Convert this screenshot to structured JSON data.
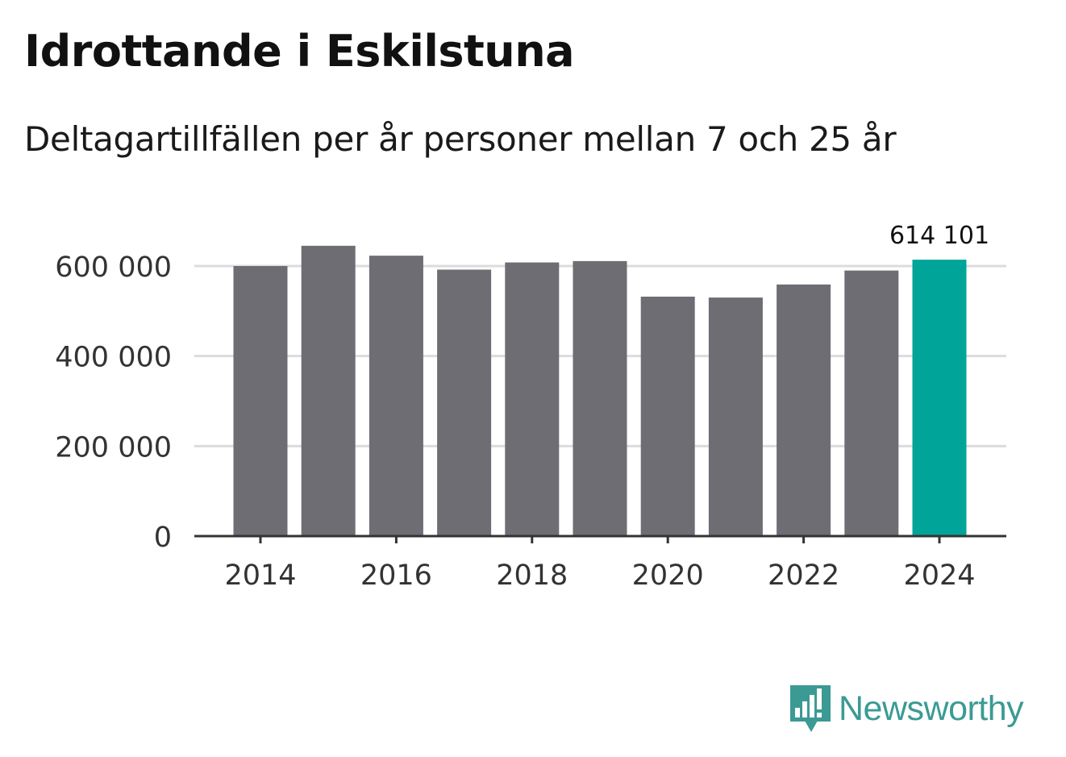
{
  "title": "Idrottande i Eskilstuna",
  "subtitle": "Deltagartillfällen per år personer mellan 7 och 25 år",
  "brand": {
    "name": "Newsworthy",
    "icon": "newsworthy-logo-icon",
    "color": "#3b9a94"
  },
  "colors": {
    "bar": "#6e6d73",
    "highlight": "#00a499",
    "grid": "#dcdcdc",
    "axis": "#333333",
    "text": "#333333"
  },
  "chart_data": {
    "type": "bar",
    "title": "Idrottande i Eskilstuna",
    "subtitle": "Deltagartillfällen per år personer mellan 7 och 25 år",
    "xlabel": "",
    "ylabel": "",
    "categories": [
      "2014",
      "2015",
      "2016",
      "2017",
      "2018",
      "2019",
      "2020",
      "2021",
      "2022",
      "2023",
      "2024"
    ],
    "values": [
      600000,
      645000,
      623000,
      592000,
      608000,
      611000,
      532000,
      530000,
      559000,
      590000,
      614101
    ],
    "highlight_index": 10,
    "highlight_label": "614 101",
    "ylim": [
      0,
      600000
    ],
    "yticks": [
      0,
      200000,
      400000,
      600000
    ],
    "ytick_labels": [
      "0",
      "200 000",
      "400 000",
      "600 000"
    ],
    "xticks": [
      "2014",
      "2016",
      "2018",
      "2020",
      "2022",
      "2024"
    ],
    "grid": true,
    "legend": "none"
  }
}
